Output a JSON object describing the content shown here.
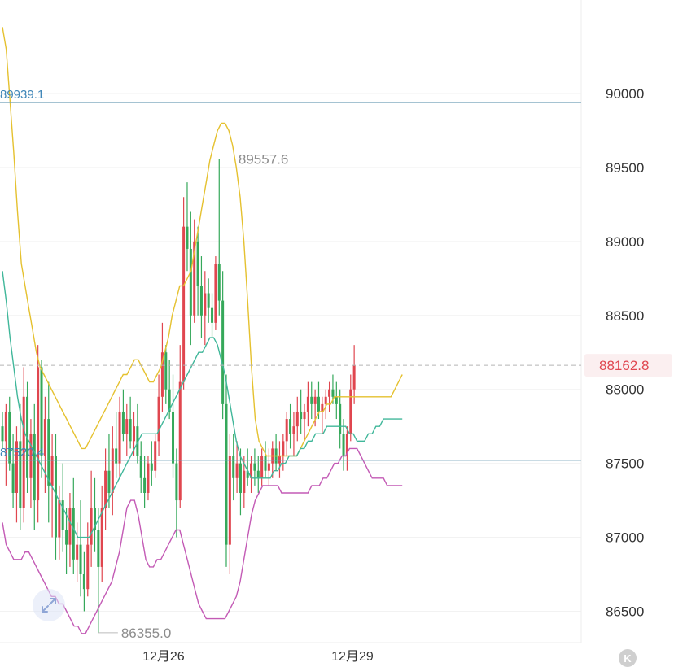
{
  "chart_data": {
    "type": "candlestick",
    "title": "",
    "ylim": [
      86250,
      90600
    ],
    "y_ticks": [
      90000,
      89500,
      89000,
      88500,
      88000,
      87500,
      87000,
      86500
    ],
    "y_tick_labels": [
      "90000",
      "89500",
      "89000",
      "88500",
      "88000",
      "87500",
      "87000",
      "86500"
    ],
    "x_tick_labels": [
      "12月26",
      "12月29"
    ],
    "x_range": [
      0,
      112
    ],
    "x_tick_positions": [
      48,
      104
    ],
    "horizontal_lines": [
      {
        "value": 89939.1,
        "label": "89939.1"
      },
      {
        "value": 87520.4,
        "label": "87520.4"
      }
    ],
    "current_price": {
      "value": 88162.8,
      "label": "88162.8"
    },
    "extreme_labels": [
      {
        "value": 89557.6,
        "label": "89557.6",
        "index": 60
      },
      {
        "value": 86355.0,
        "label": "86355.0",
        "index": 27
      }
    ],
    "candle_colors": {
      "up": "#e0464f",
      "down": "#35a85a"
    },
    "candles_ohlc": [
      [
        87750,
        87850,
        87600,
        87650
      ],
      [
        87650,
        87900,
        87350,
        87850
      ],
      [
        87850,
        87950,
        87450,
        87500
      ],
      [
        87500,
        87700,
        87200,
        87300
      ],
      [
        87300,
        87750,
        87100,
        87650
      ],
      [
        87650,
        87900,
        87050,
        87200
      ],
      [
        87200,
        88150,
        87100,
        87950
      ],
      [
        87950,
        88050,
        87300,
        87400
      ],
      [
        87400,
        87800,
        87200,
        87700
      ],
      [
        87700,
        87900,
        87050,
        87250
      ],
      [
        87250,
        88300,
        87100,
        88150
      ],
      [
        88150,
        88200,
        87400,
        87550
      ],
      [
        87550,
        87950,
        87300,
        87800
      ],
      [
        87800,
        88050,
        87100,
        87350
      ],
      [
        87350,
        87700,
        87000,
        87550
      ],
      [
        87550,
        87700,
        86850,
        87000
      ],
      [
        87000,
        87350,
        86850,
        87250
      ],
      [
        87250,
        87500,
        86900,
        87050
      ],
      [
        87050,
        87200,
        86750,
        86950
      ],
      [
        86950,
        87300,
        86800,
        87200
      ],
      [
        87200,
        87400,
        86750,
        86850
      ],
      [
        86850,
        87100,
        86700,
        86950
      ],
      [
        86950,
        87250,
        86600,
        86750
      ],
      [
        86750,
        86900,
        86500,
        86650
      ],
      [
        86650,
        87100,
        86600,
        86950
      ],
      [
        86950,
        87450,
        86800,
        87200
      ],
      [
        87200,
        87400,
        86900,
        87050
      ],
      [
        87050,
        87200,
        86355,
        86800
      ],
      [
        86800,
        87350,
        86700,
        87200
      ],
      [
        87200,
        87600,
        87050,
        87450
      ],
      [
        87450,
        87700,
        87200,
        87300
      ],
      [
        87300,
        87750,
        87150,
        87600
      ],
      [
        87600,
        87850,
        87400,
        87500
      ],
      [
        87500,
        87950,
        87400,
        87850
      ],
      [
        87850,
        88000,
        87650,
        87700
      ],
      [
        87700,
        87900,
        87550,
        87800
      ],
      [
        87800,
        87950,
        87600,
        87650
      ],
      [
        87650,
        87850,
        87550,
        87750
      ],
      [
        87750,
        87900,
        87500,
        87550
      ],
      [
        87550,
        87650,
        87300,
        87400
      ],
      [
        87400,
        87550,
        87200,
        87300
      ],
      [
        87300,
        87550,
        87250,
        87500
      ],
      [
        87500,
        87650,
        87350,
        87450
      ],
      [
        87450,
        87700,
        87400,
        87650
      ],
      [
        87650,
        88100,
        87550,
        87950
      ],
      [
        87950,
        88450,
        87850,
        88250
      ],
      [
        88250,
        88300,
        87900,
        88000
      ],
      [
        88000,
        88200,
        87800,
        87850
      ],
      [
        87850,
        88100,
        87400,
        87500
      ],
      [
        87500,
        87600,
        87000,
        87250
      ],
      [
        87250,
        88300,
        87200,
        88050
      ],
      [
        88050,
        89300,
        88000,
        89100
      ],
      [
        89100,
        89400,
        88800,
        88950
      ],
      [
        88950,
        89200,
        88300,
        88500
      ],
      [
        88500,
        89150,
        88450,
        89000
      ],
      [
        89000,
        89100,
        88500,
        88700
      ],
      [
        88700,
        88900,
        88350,
        88500
      ],
      [
        88500,
        88800,
        88300,
        88650
      ],
      [
        88650,
        88750,
        88450,
        88550
      ],
      [
        88550,
        88650,
        88350,
        88450
      ],
      [
        88450,
        88900,
        88400,
        88850
      ],
      [
        88850,
        89557.6,
        88500,
        88600
      ],
      [
        88600,
        88800,
        87800,
        87900
      ],
      [
        87900,
        88100,
        86800,
        86950
      ],
      [
        86950,
        87700,
        86750,
        87550
      ],
      [
        87550,
        87700,
        87250,
        87400
      ],
      [
        87400,
        87650,
        87300,
        87500
      ],
      [
        87500,
        87600,
        87150,
        87300
      ],
      [
        87300,
        87550,
        87200,
        87450
      ],
      [
        87450,
        87600,
        87350,
        87400
      ],
      [
        87400,
        87550,
        87300,
        87500
      ],
      [
        87500,
        87600,
        87350,
        87450
      ],
      [
        87450,
        87550,
        87300,
        87400
      ],
      [
        87400,
        87600,
        87350,
        87550
      ],
      [
        87550,
        87650,
        87400,
        87450
      ],
      [
        87450,
        87600,
        87350,
        87500
      ],
      [
        87500,
        87650,
        87400,
        87600
      ],
      [
        87600,
        87700,
        87450,
        87500
      ],
      [
        87500,
        87650,
        87400,
        87550
      ],
      [
        87550,
        87700,
        87450,
        87650
      ],
      [
        87650,
        87850,
        87550,
        87800
      ],
      [
        87800,
        87900,
        87600,
        87700
      ],
      [
        87700,
        87850,
        87550,
        87750
      ],
      [
        87750,
        87950,
        87650,
        87850
      ],
      [
        87850,
        88000,
        87700,
        87800
      ],
      [
        87800,
        87900,
        87650,
        87850
      ],
      [
        87850,
        88050,
        87750,
        87950
      ],
      [
        87950,
        88050,
        87800,
        87900
      ],
      [
        87900,
        88000,
        87750,
        87950
      ],
      [
        87950,
        88050,
        87800,
        87850
      ],
      [
        87850,
        87950,
        87700,
        87900
      ],
      [
        87900,
        88000,
        87800,
        87950
      ],
      [
        87950,
        88050,
        87850,
        88000
      ],
      [
        88000,
        88100,
        87900,
        87950
      ],
      [
        87950,
        88050,
        87800,
        87900
      ],
      [
        87900,
        88000,
        87600,
        87700
      ],
      [
        87700,
        87800,
        87450,
        87550
      ],
      [
        87550,
        87750,
        87450,
        87700
      ],
      [
        87700,
        88100,
        87650,
        88000
      ],
      [
        88000,
        88300,
        87900,
        88162.8
      ]
    ],
    "series": [
      {
        "name": "",
        "color": "#e5c12f",
        "values": [
          90450,
          90300,
          89950,
          89600,
          89200,
          88850,
          88700,
          88550,
          88400,
          88250,
          88150,
          88100,
          88050,
          88000,
          87950,
          87900,
          87850,
          87800,
          87750,
          87700,
          87650,
          87600,
          87600,
          87650,
          87700,
          87750,
          87800,
          87850,
          87900,
          87950,
          88000,
          88050,
          88100,
          88100,
          88150,
          88200,
          88200,
          88150,
          88100,
          88050,
          88050,
          88100,
          88150,
          88250,
          88350,
          88500,
          88600,
          88700,
          88700,
          88750,
          88800,
          88950,
          89100,
          89250,
          89400,
          89550,
          89650,
          89750,
          89800,
          89800,
          89750,
          89650,
          89500,
          89300,
          89000,
          88600,
          88150,
          87800,
          87650,
          87600,
          87550,
          87550,
          87550,
          87550,
          87550,
          87550,
          87550,
          87550,
          87550,
          87600,
          87650,
          87700,
          87750,
          87800,
          87850,
          87850,
          87900,
          87900,
          87950,
          87950,
          87950,
          87950,
          87950,
          87950,
          87950,
          87950,
          87950,
          87950,
          87950,
          87950,
          87950,
          87950,
          87950,
          87950,
          88000,
          88050,
          88100
        ]
      },
      {
        "name": "",
        "color": "#40b79a",
        "values": [
          88800,
          88600,
          88350,
          88150,
          87950,
          87800,
          87700,
          87650,
          87600,
          87550,
          87500,
          87450,
          87400,
          87350,
          87300,
          87250,
          87200,
          87150,
          87100,
          87050,
          87000,
          87000,
          87000,
          87000,
          87050,
          87100,
          87150,
          87200,
          87250,
          87300,
          87350,
          87400,
          87450,
          87500,
          87550,
          87600,
          87650,
          87700,
          87700,
          87700,
          87700,
          87700,
          87750,
          87800,
          87850,
          87900,
          87950,
          88000,
          88050,
          88100,
          88150,
          88200,
          88250,
          88250,
          88300,
          88350,
          88350,
          88300,
          88200,
          88100,
          87950,
          87800,
          87650,
          87550,
          87500,
          87450,
          87400,
          87400,
          87400,
          87400,
          87400,
          87400,
          87450,
          87450,
          87500,
          87500,
          87550,
          87550,
          87550,
          87600,
          87600,
          87650,
          87650,
          87700,
          87700,
          87700,
          87750,
          87750,
          87750,
          87750,
          87750,
          87750,
          87700,
          87700,
          87650,
          87650,
          87650,
          87700,
          87700,
          87750,
          87750,
          87800,
          87800,
          87800,
          87800,
          87800,
          87800
        ]
      },
      {
        "name": "",
        "color": "#c35ab5",
        "values": [
          87100,
          86950,
          86900,
          86850,
          86850,
          86850,
          86900,
          86900,
          86850,
          86800,
          86750,
          86700,
          86650,
          86600,
          86600,
          86550,
          86550,
          86500,
          86450,
          86400,
          86400,
          86350,
          86350,
          86400,
          86450,
          86500,
          86550,
          86600,
          86650,
          86700,
          86800,
          86900,
          87050,
          87200,
          87250,
          87250,
          87150,
          87000,
          86850,
          86800,
          86800,
          86850,
          86850,
          86900,
          86950,
          87000,
          87050,
          87050,
          86950,
          86850,
          86750,
          86650,
          86550,
          86500,
          86450,
          86450,
          86450,
          86450,
          86450,
          86450,
          86500,
          86550,
          86600,
          86700,
          86850,
          87000,
          87150,
          87250,
          87300,
          87350,
          87350,
          87350,
          87350,
          87350,
          87300,
          87300,
          87300,
          87300,
          87300,
          87300,
          87300,
          87300,
          87350,
          87350,
          87350,
          87400,
          87400,
          87450,
          87500,
          87500,
          87550,
          87550,
          87600,
          87600,
          87600,
          87550,
          87500,
          87450,
          87400,
          87400,
          87400,
          87400,
          87350,
          87350,
          87350,
          87350,
          87350
        ]
      }
    ],
    "grid": true
  },
  "ui": {
    "expand_icon": "expand-arrows-icon",
    "logo_letter": "K"
  }
}
